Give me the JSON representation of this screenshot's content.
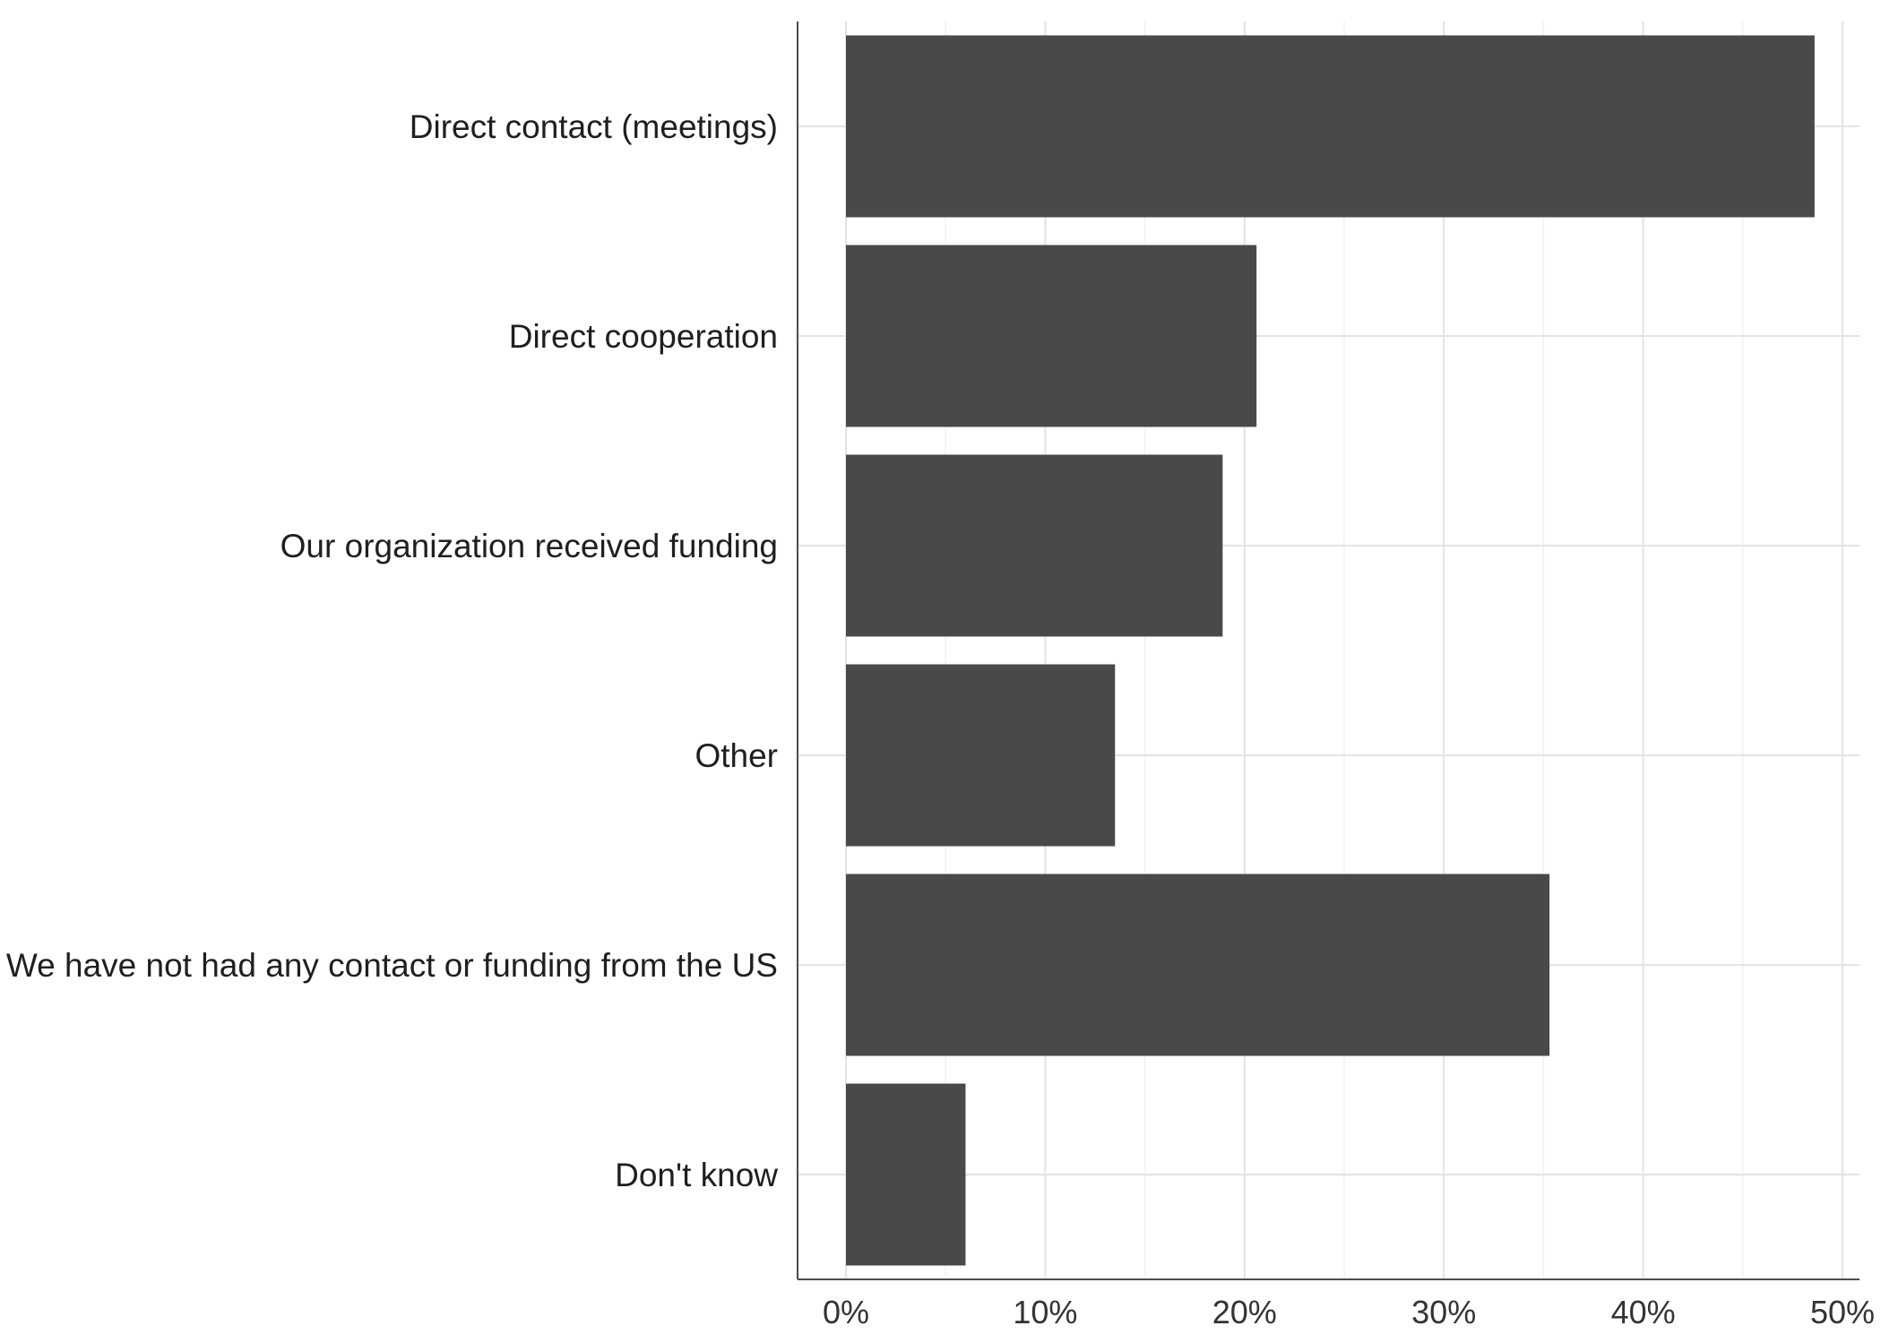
{
  "chart_data": {
    "type": "bar",
    "orientation": "horizontal",
    "title": "",
    "xlabel": "",
    "ylabel": "",
    "categories": [
      "Direct contact (meetings)",
      "Direct cooperation",
      "Our organization received funding",
      "Other",
      "We have not had any contact or funding from the US",
      "Don't know"
    ],
    "values": [
      48.6,
      20.6,
      18.9,
      13.5,
      35.3,
      6.0
    ],
    "xlim": [
      0,
      50
    ],
    "x_ticks": [
      0,
      10,
      20,
      30,
      40,
      50
    ],
    "x_tick_labels": [
      "0%",
      "10%",
      "20%",
      "30%",
      "40%",
      "50%"
    ],
    "grid": true,
    "legend": "none",
    "colors": {
      "bar": "#494949",
      "grid_major": "#e3e3e3",
      "grid_minor": "#f1f1f1",
      "axis": "#4d4d4d"
    }
  }
}
